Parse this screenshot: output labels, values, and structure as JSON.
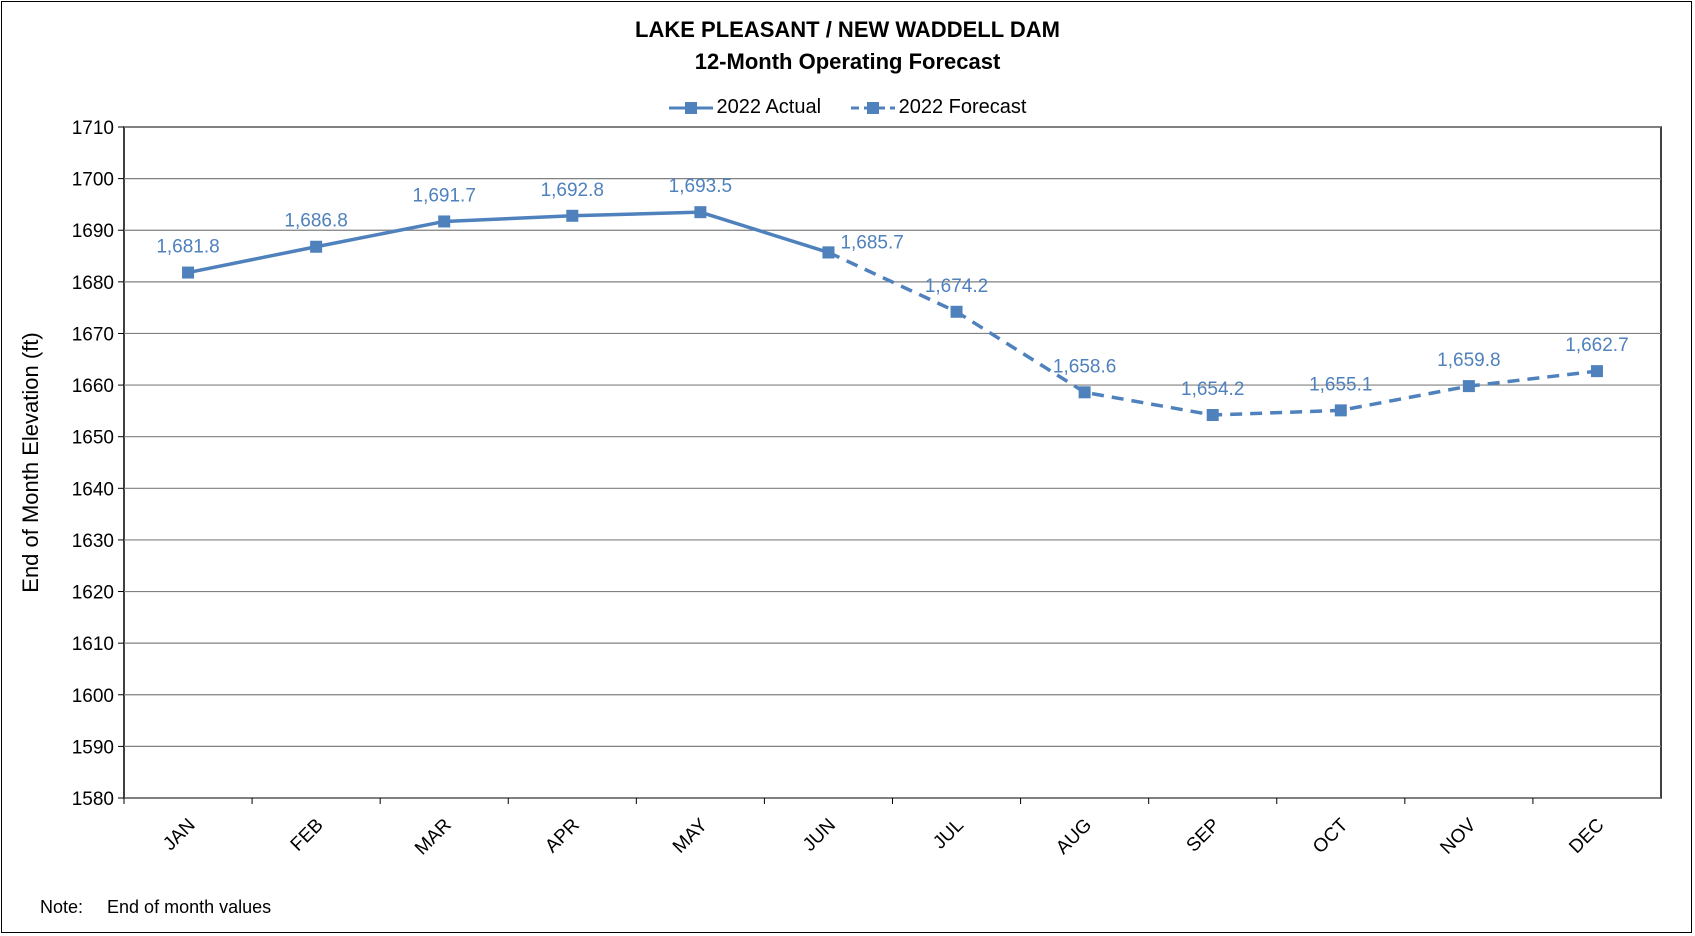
{
  "chart_data": {
    "type": "line",
    "title": "LAKE PLEASANT / NEW WADDELL DAM",
    "subtitle": "12-Month Operating Forecast",
    "xlabel": "",
    "ylabel": "End of Month Elevation (ft)",
    "ylim": [
      1580,
      1710
    ],
    "yticks": [
      1710,
      1700,
      1690,
      1680,
      1670,
      1660,
      1650,
      1640,
      1630,
      1620,
      1610,
      1600,
      1590,
      1580
    ],
    "categories": [
      "JAN",
      "FEB",
      "MAR",
      "APR",
      "MAY",
      "JUN",
      "JUL",
      "AUG",
      "SEP",
      "OCT",
      "NOV",
      "DEC"
    ],
    "series": [
      {
        "name": "2022 Actual",
        "style": "solid",
        "color": "#4f81bd",
        "values": [
          1681.8,
          1686.8,
          1691.7,
          1692.8,
          1693.5,
          1685.7,
          null,
          null,
          null,
          null,
          null,
          null
        ]
      },
      {
        "name": "2022 Forecast",
        "style": "dashed",
        "color": "#4f81bd",
        "values": [
          null,
          null,
          null,
          null,
          null,
          1685.7,
          1674.2,
          1658.6,
          1654.2,
          1655.1,
          1659.8,
          1662.7
        ]
      }
    ],
    "data_labels": [
      "1,681.8",
      "1,686.8",
      "1,691.7",
      "1,692.8",
      "1,693.5",
      "1,685.7",
      "1,674.2",
      "1,658.6",
      "1,654.2",
      "1,655.1",
      "1,659.8",
      "1,662.7"
    ],
    "grid": true,
    "legend": "top-center"
  },
  "note": {
    "label": "Note:",
    "text": "End of month values"
  },
  "colors": {
    "series": "#4f81bd",
    "grid": "#808080"
  }
}
